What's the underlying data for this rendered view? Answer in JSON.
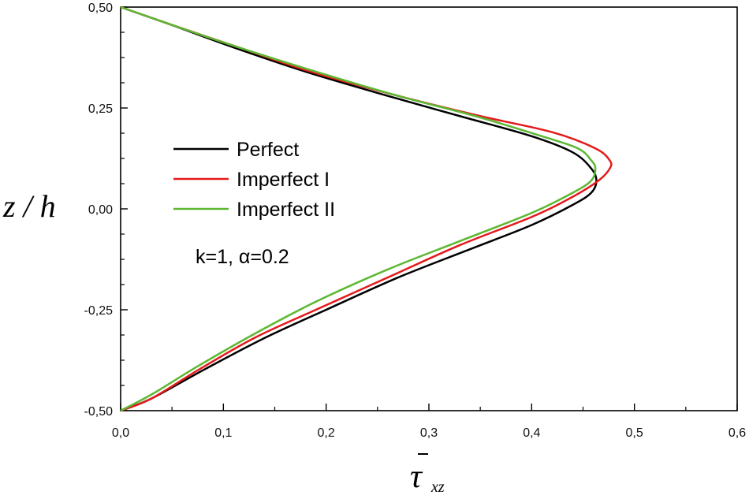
{
  "chart_data": {
    "type": "line",
    "xlabel_main": "τ",
    "xlabel_sub": "xz",
    "ylabel": "z / h",
    "xlim": [
      0,
      0.6
    ],
    "ylim": [
      -0.5,
      0.5
    ],
    "x_ticks": [
      "0,0",
      "0,1",
      "0,2",
      "0,3",
      "0,4",
      "0,5",
      "0,6"
    ],
    "y_ticks": [
      "-0,50",
      "-0,25",
      "0,00",
      "0,25",
      "0,50"
    ],
    "annotation": "k=1, α=0.2",
    "legend_position": "center-left",
    "series": [
      {
        "name": "Perfect",
        "color": "#000000",
        "points": [
          [
            0.0,
            0.5
          ],
          [
            0.045,
            0.46
          ],
          [
            0.11,
            0.4
          ],
          [
            0.18,
            0.34
          ],
          [
            0.26,
            0.28
          ],
          [
            0.33,
            0.23
          ],
          [
            0.4,
            0.18
          ],
          [
            0.44,
            0.14
          ],
          [
            0.458,
            0.1
          ],
          [
            0.463,
            0.07
          ],
          [
            0.458,
            0.04
          ],
          [
            0.44,
            0.01
          ],
          [
            0.4,
            -0.04
          ],
          [
            0.34,
            -0.1
          ],
          [
            0.27,
            -0.17
          ],
          [
            0.2,
            -0.25
          ],
          [
            0.14,
            -0.32
          ],
          [
            0.08,
            -0.4
          ],
          [
            0.03,
            -0.47
          ],
          [
            0.0,
            -0.5
          ]
        ]
      },
      {
        "name": "Imperfect I",
        "color": "#e41a1c",
        "points": [
          [
            0.0,
            0.5
          ],
          [
            0.045,
            0.46
          ],
          [
            0.115,
            0.4
          ],
          [
            0.185,
            0.34
          ],
          [
            0.27,
            0.28
          ],
          [
            0.35,
            0.23
          ],
          [
            0.42,
            0.19
          ],
          [
            0.462,
            0.15
          ],
          [
            0.476,
            0.12
          ],
          [
            0.476,
            0.1
          ],
          [
            0.465,
            0.07
          ],
          [
            0.44,
            0.03
          ],
          [
            0.4,
            -0.02
          ],
          [
            0.33,
            -0.09
          ],
          [
            0.26,
            -0.17
          ],
          [
            0.19,
            -0.25
          ],
          [
            0.13,
            -0.32
          ],
          [
            0.075,
            -0.4
          ],
          [
            0.03,
            -0.47
          ],
          [
            0.0,
            -0.5
          ]
        ]
      },
      {
        "name": "Imperfect II",
        "color": "#5cb832",
        "points": [
          [
            0.0,
            0.5
          ],
          [
            0.045,
            0.46
          ],
          [
            0.115,
            0.4
          ],
          [
            0.19,
            0.34
          ],
          [
            0.27,
            0.28
          ],
          [
            0.345,
            0.23
          ],
          [
            0.41,
            0.18
          ],
          [
            0.445,
            0.15
          ],
          [
            0.458,
            0.12
          ],
          [
            0.462,
            0.1
          ],
          [
            0.458,
            0.07
          ],
          [
            0.44,
            0.04
          ],
          [
            0.4,
            -0.01
          ],
          [
            0.33,
            -0.08
          ],
          [
            0.26,
            -0.15
          ],
          [
            0.19,
            -0.23
          ],
          [
            0.13,
            -0.31
          ],
          [
            0.075,
            -0.39
          ],
          [
            0.03,
            -0.46
          ],
          [
            0.0,
            -0.5
          ]
        ]
      }
    ]
  }
}
